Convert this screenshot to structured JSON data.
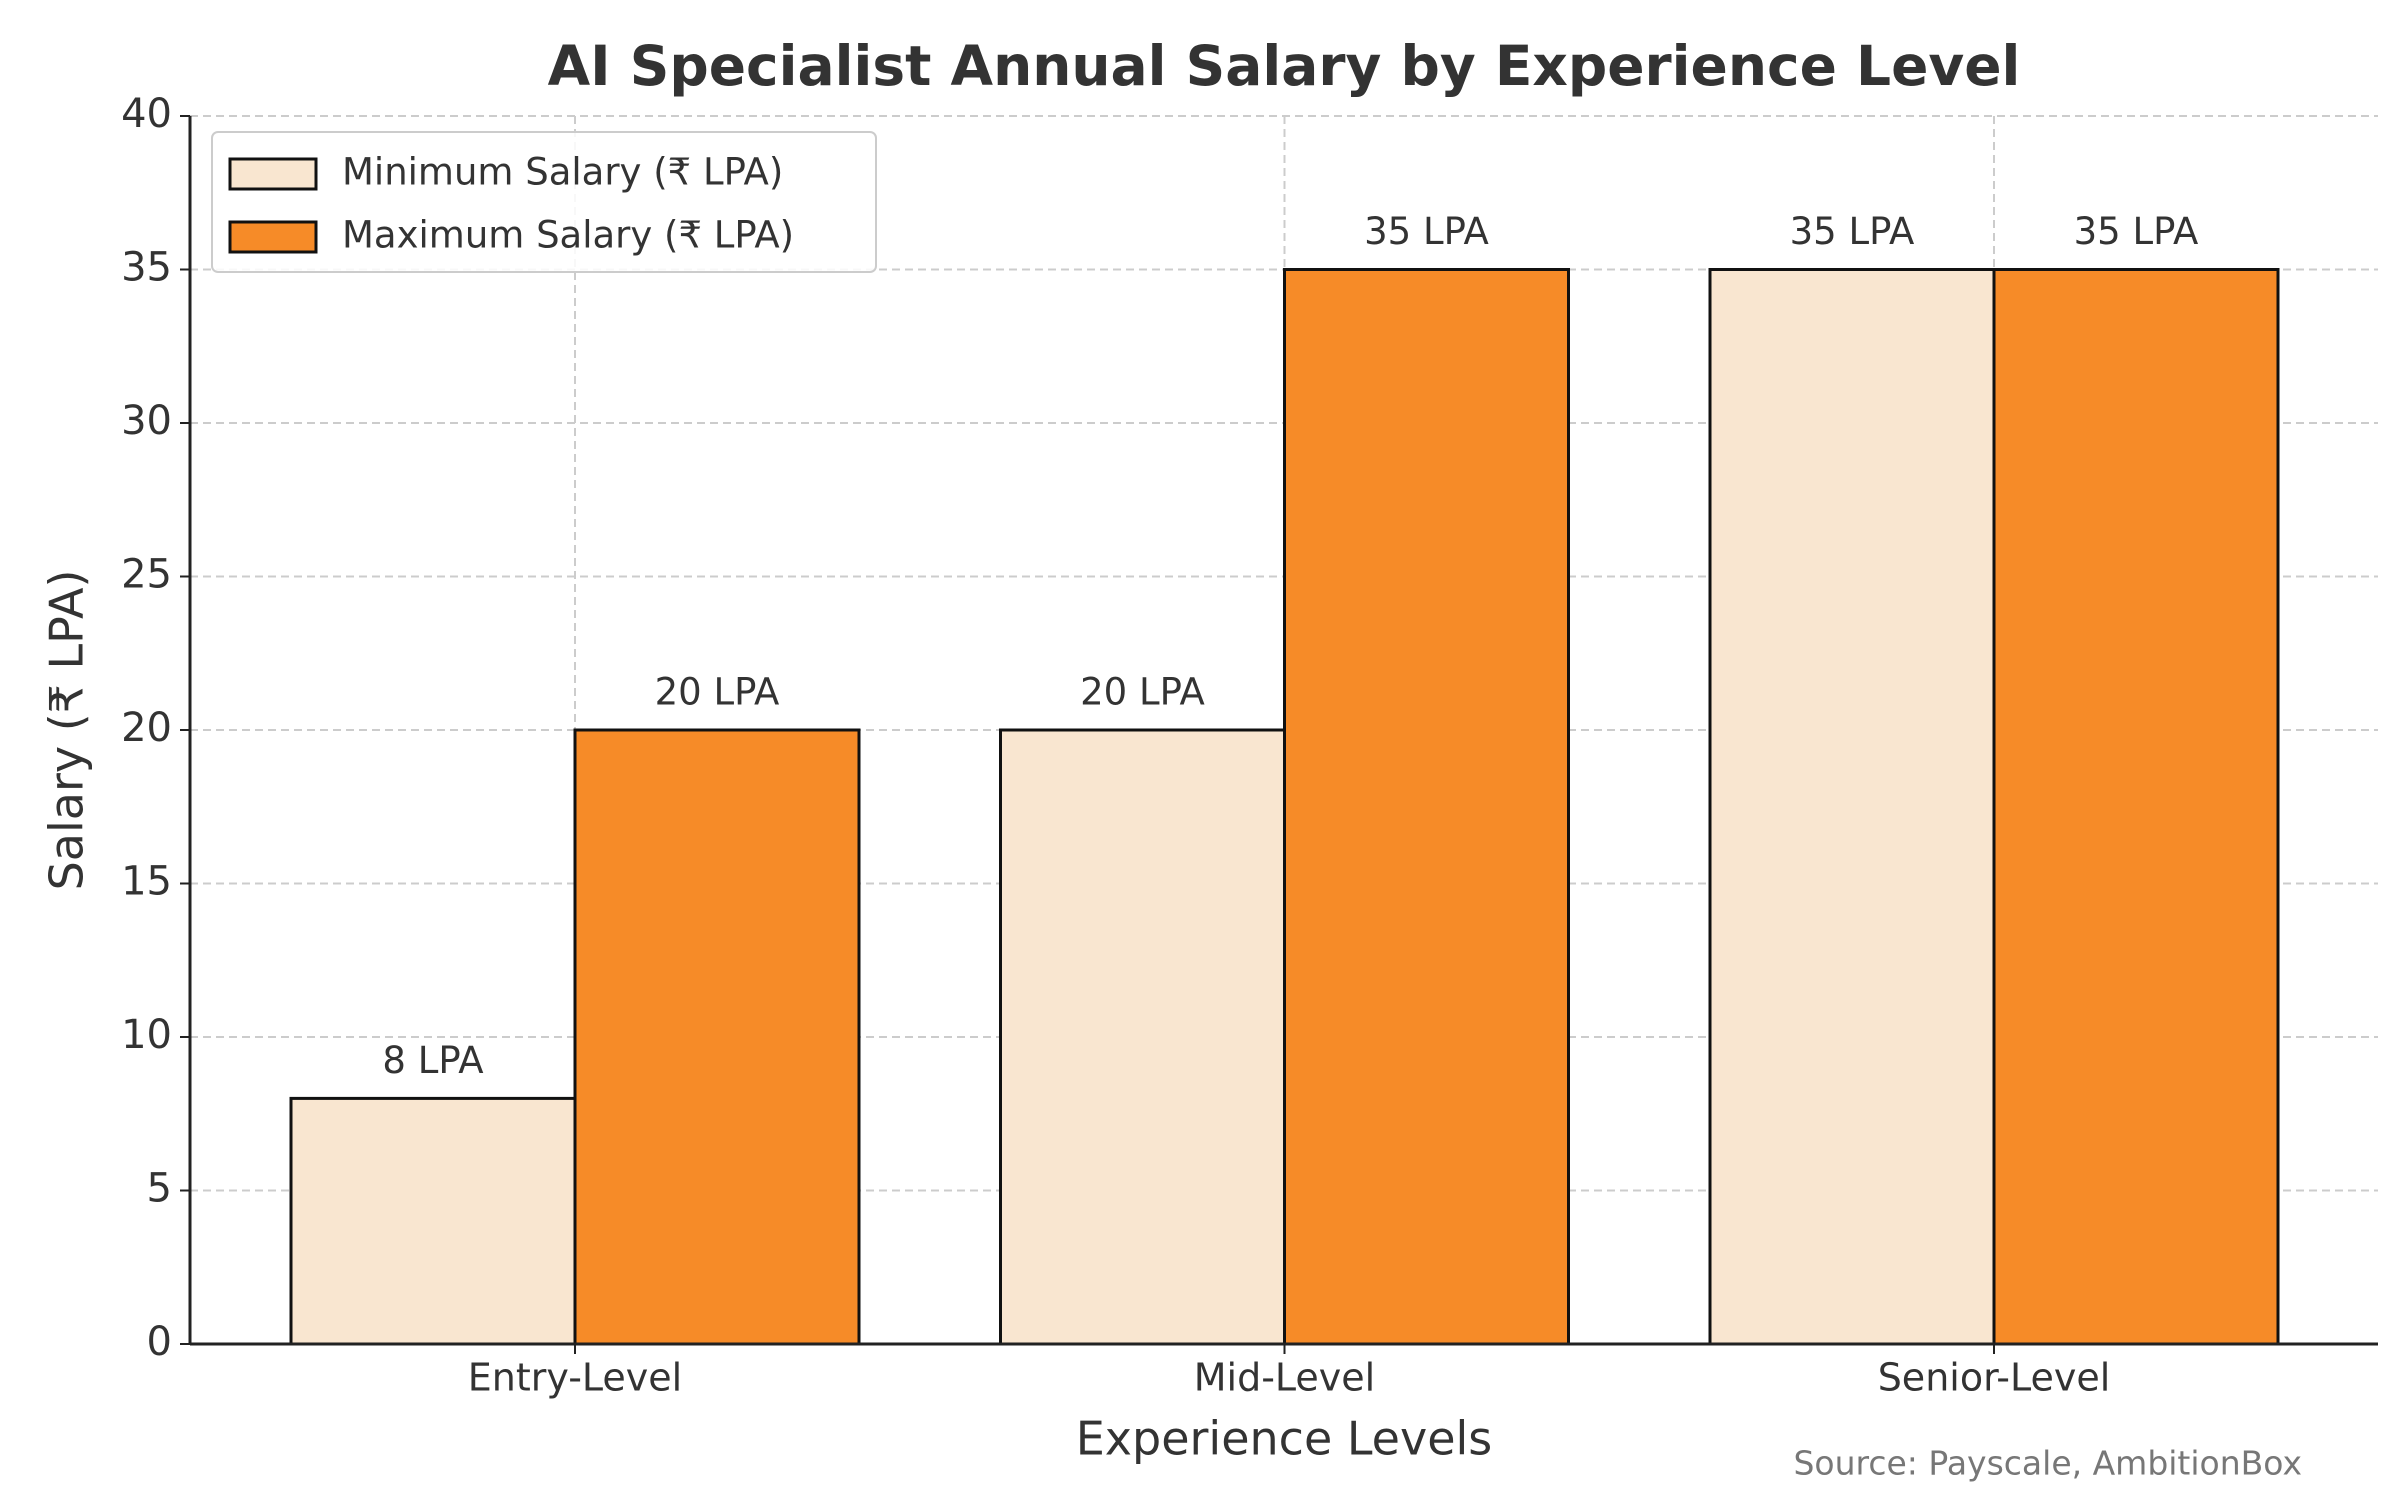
{
  "chart_data": {
    "type": "bar",
    "title": "AI Specialist Annual Salary by Experience Level",
    "x_label": "Experience Levels",
    "y_label": "Salary (₹ LPA)",
    "categories": [
      "Entry-Level",
      "Mid-Level",
      "Senior-Level"
    ],
    "series": [
      {
        "name": "Minimum Salary (₹ LPA)",
        "color": "#f9e6d0",
        "values": [
          8,
          20,
          35
        ],
        "value_labels": [
          "8 LPA",
          "20 LPA",
          "35 LPA"
        ]
      },
      {
        "name": "Maximum Salary (₹ LPA)",
        "color": "#f68b28",
        "values": [
          20,
          35,
          35
        ],
        "value_labels": [
          "20 LPA",
          "35 LPA",
          "35 LPA"
        ]
      }
    ],
    "ylim": [
      0,
      40
    ],
    "yticks": [
      0,
      5,
      10,
      15,
      20,
      25,
      30,
      35,
      40
    ],
    "grid": true,
    "legend": "upper left",
    "source": "Source: Payscale, AmbitionBox"
  }
}
